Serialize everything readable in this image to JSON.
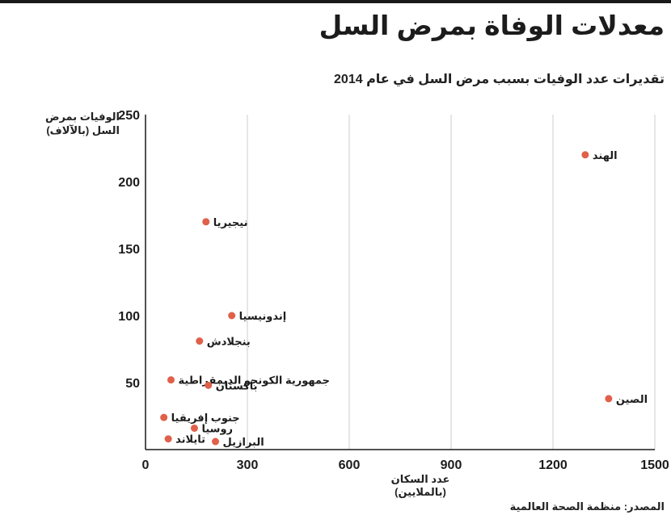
{
  "chart_data": {
    "type": "scatter",
    "title": "معدلات الوفاة بمرض السل",
    "subtitle": "تقديرات عدد الوفيات بسبب مرض السل في عام 2014",
    "xlabel": "عدد السكان (بالملايين)",
    "ylabel": "الوفيات بمرض السل (بالآلاف)",
    "xlim": [
      0,
      1500
    ],
    "ylim": [
      0,
      250
    ],
    "x_ticks": [
      0,
      300,
      600,
      900,
      1200,
      1500
    ],
    "y_ticks": [
      50,
      100,
      150,
      200,
      250
    ],
    "grid": "vertical",
    "point_color": "#e0604a",
    "points": [
      {
        "label": "الهند",
        "x": 1295,
        "y": 220
      },
      {
        "label": "نيجيريا",
        "x": 178,
        "y": 170
      },
      {
        "label": "إندونيسيا",
        "x": 254,
        "y": 100
      },
      {
        "label": "بنجلادش",
        "x": 159,
        "y": 81
      },
      {
        "label": "جمهورية الكونجو الديمقراطية",
        "x": 75,
        "y": 52
      },
      {
        "label": "باكستان",
        "x": 185,
        "y": 48
      },
      {
        "label": "الصين",
        "x": 1364,
        "y": 38
      },
      {
        "label": "جنوب إفريقيا",
        "x": 54,
        "y": 24
      },
      {
        "label": "روسيا",
        "x": 144,
        "y": 16
      },
      {
        "label": "تايلاند",
        "x": 67,
        "y": 8
      },
      {
        "label": "البرازيل",
        "x": 206,
        "y": 6
      }
    ]
  },
  "source": "المصدر: منظمة الصحة العالمية"
}
